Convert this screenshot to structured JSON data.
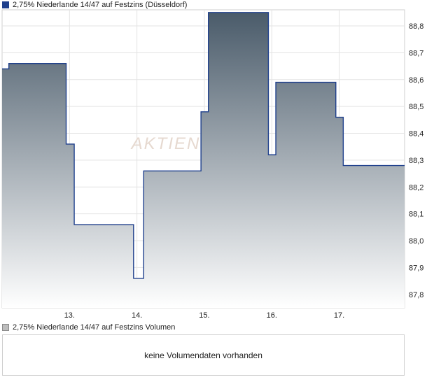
{
  "price_legend": {
    "label": "2,75% Niederlande 14/47 auf Festzins (Düsseldorf)",
    "color": "#1e3f8c"
  },
  "volume_legend": {
    "label": "2,75% Niederlande 14/47 auf Festzins Volumen",
    "color": "#bdbdbd"
  },
  "volume_panel": {
    "message": "keine Volumendaten vorhanden"
  },
  "watermark": "AKTIEN",
  "chart_data": {
    "type": "area",
    "step": true,
    "x_tick_labels": [
      "13.",
      "14.",
      "15.",
      "16.",
      "17."
    ],
    "y_tick_labels": [
      "87,8",
      "87,9",
      "88,0",
      "88,1",
      "88,2",
      "88,3",
      "88,4",
      "88,5",
      "88,6",
      "88,7",
      "88,8"
    ],
    "ylim": [
      87.75,
      88.86
    ],
    "xlim": [
      12.0,
      17.97
    ],
    "grid": true,
    "line_color": "#1e3f8c",
    "fill_top_color": "#4a5b6a",
    "fill_bottom_color": "#ffffff",
    "x": [
      12.0,
      12.1,
      12.95,
      13.07,
      13.95,
      14.1,
      14.95,
      15.06,
      15.95,
      16.06,
      16.95,
      17.06,
      17.97
    ],
    "values": [
      88.64,
      88.66,
      88.36,
      88.06,
      87.86,
      88.26,
      88.48,
      88.85,
      88.32,
      88.59,
      88.46,
      88.28,
      88.28
    ]
  }
}
